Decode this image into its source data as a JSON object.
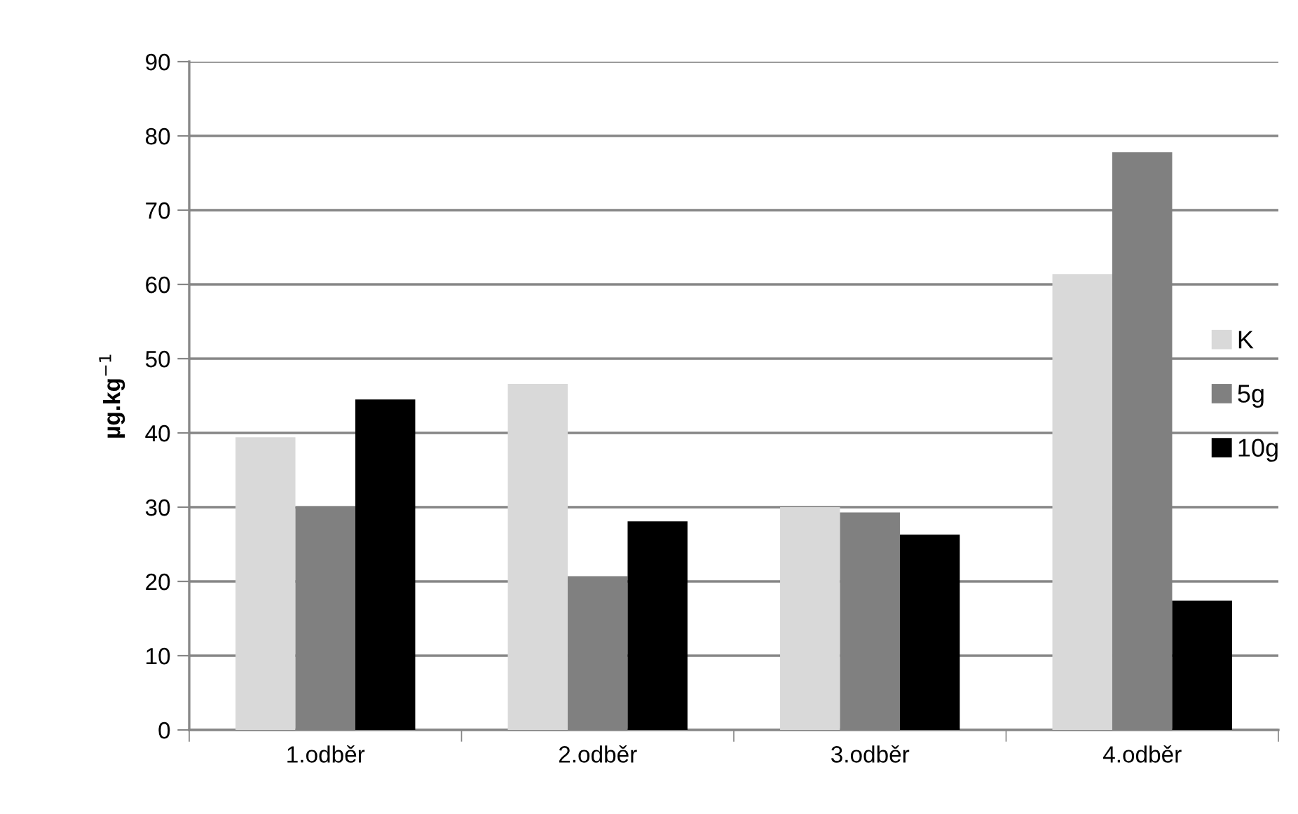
{
  "chart_data": {
    "type": "bar",
    "categories": [
      "1.odběr",
      "2.odběr",
      "3.odběr",
      "4.odběr"
    ],
    "series": [
      {
        "name": "K",
        "color": "#d9d9d9",
        "values": [
          39.4,
          46.6,
          30.0,
          61.4
        ]
      },
      {
        "name": "5g",
        "color": "#808080",
        "values": [
          30.0,
          20.7,
          29.3,
          77.8
        ]
      },
      {
        "name": "10g",
        "color": "#000000",
        "values": [
          44.5,
          28.1,
          26.3,
          17.4
        ]
      }
    ],
    "ylabel": "µg.kg$^{−1}$",
    "ylim": [
      0,
      90
    ],
    "yticks": [
      0,
      10,
      20,
      30,
      40,
      50,
      60,
      70,
      80,
      90
    ],
    "grid": "y",
    "legend": "right"
  }
}
